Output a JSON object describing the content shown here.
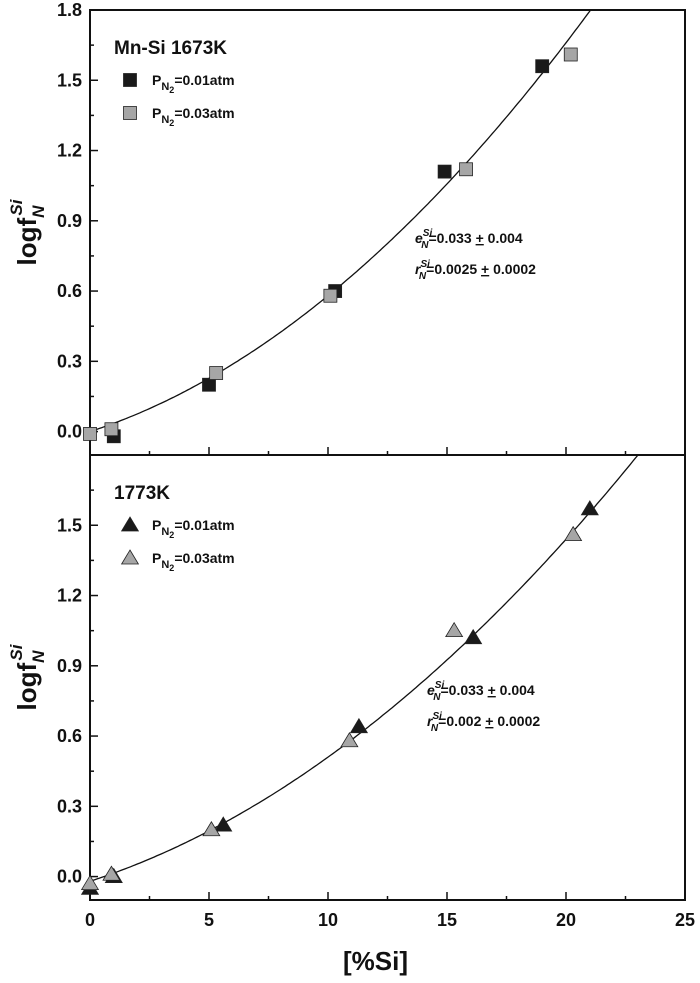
{
  "chart_data": [
    {
      "type": "scatter",
      "title": "Mn-Si 1673K",
      "ylabel": "logf",
      "ylabel_sub": "N",
      "ylabel_sup": "Si",
      "xlim": [
        0,
        25
      ],
      "ylim": [
        -0.1,
        1.8
      ],
      "yticks": [
        0.0,
        0.3,
        0.6,
        0.9,
        1.2,
        1.5,
        1.8
      ],
      "ytick_labels": [
        "0.0",
        "0.3",
        "0.6",
        "0.9",
        "1.2",
        "1.5",
        "1.8"
      ],
      "marker": "square",
      "series": [
        {
          "name": "P",
          "name_sub": "N",
          "name_sub2": "2",
          "name_rest": "=0.01atm",
          "color": "#1a1a1a",
          "x": [
            1.0,
            5.0,
            10.3,
            14.9,
            19.0
          ],
          "y": [
            -0.02,
            0.2,
            0.6,
            1.11,
            1.56
          ]
        },
        {
          "name": "P",
          "name_sub": "N",
          "name_sub2": "2",
          "name_rest": "=0.03atm",
          "color": "#a6a6a6",
          "x": [
            0.0,
            0.9,
            5.3,
            10.1,
            15.8,
            20.2
          ],
          "y": [
            -0.01,
            0.01,
            0.25,
            0.58,
            1.12,
            1.61
          ]
        }
      ],
      "fit": {
        "a": 0.0,
        "b": 0.033,
        "c": 0.0025
      },
      "annotations": [
        {
          "lead": "e",
          "sub": "N",
          "sup": "Si",
          "text": "=0.033 ",
          "pm": "+",
          "rest": " 0.004"
        },
        {
          "lead": "r",
          "sub": "N",
          "sup": "Si",
          "text": "=0.0025 ",
          "pm": "+",
          "rest": " 0.0002"
        }
      ]
    },
    {
      "type": "scatter",
      "title": "1773K",
      "xlabel": "[%Si]",
      "ylabel": "logf",
      "ylabel_sub": "N",
      "ylabel_sup": "Si",
      "xlim": [
        0,
        25
      ],
      "ylim": [
        -0.1,
        1.8
      ],
      "xticks": [
        0,
        5,
        10,
        15,
        20,
        25
      ],
      "xtick_labels": [
        "0",
        "5",
        "10",
        "15",
        "20",
        "25"
      ],
      "yticks": [
        0.0,
        0.3,
        0.6,
        0.9,
        1.2,
        1.5
      ],
      "ytick_labels": [
        "0.0",
        "0.3",
        "0.6",
        "0.9",
        "1.2",
        "1.5"
      ],
      "marker": "triangle",
      "series": [
        {
          "name": "P",
          "name_sub": "N",
          "name_sub2": "2",
          "name_rest": "=0.01atm",
          "color": "#1a1a1a",
          "x": [
            0.0,
            1.0,
            5.6,
            11.3,
            16.1,
            21.0
          ],
          "y": [
            -0.05,
            0.0,
            0.22,
            0.64,
            1.02,
            1.57
          ]
        },
        {
          "name": "P",
          "name_sub": "N",
          "name_sub2": "2",
          "name_rest": "=0.03atm",
          "color": "#a6a6a6",
          "x": [
            0.0,
            0.9,
            5.1,
            10.9,
            15.3,
            20.3
          ],
          "y": [
            -0.03,
            0.01,
            0.2,
            0.58,
            1.05,
            1.46
          ]
        }
      ],
      "fit": {
        "a": -0.02,
        "b": 0.033,
        "c": 0.002
      },
      "annotations": [
        {
          "lead": "e",
          "sub": "N",
          "sup": "Si",
          "text": "=0.033 ",
          "pm": "+",
          "rest": " 0.004"
        },
        {
          "lead": "r",
          "sub": "N",
          "sup": "Si",
          "text": "=0.002 ",
          "pm": "+",
          "rest": " 0.0002"
        }
      ]
    }
  ]
}
